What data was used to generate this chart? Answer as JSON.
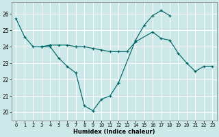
{
  "xlabel": "Humidex (Indice chaleur)",
  "bg_color": "#cce8e8",
  "grid_color": "#ffffff",
  "line_color": "#006666",
  "xlim": [
    -0.5,
    23.5
  ],
  "ylim": [
    19.5,
    26.7
  ],
  "xticks": [
    0,
    1,
    2,
    3,
    4,
    5,
    6,
    7,
    8,
    9,
    10,
    11,
    12,
    13,
    14,
    15,
    16,
    17,
    18,
    19,
    20,
    21,
    22,
    23
  ],
  "yticks": [
    20,
    21,
    22,
    23,
    24,
    25,
    26
  ],
  "series": [
    {
      "x": [
        0,
        1,
        2,
        3,
        4
      ],
      "y": [
        25.7,
        24.6,
        24.0,
        24.0,
        24.1
      ]
    },
    {
      "x": [
        3,
        4,
        5,
        6,
        7,
        8,
        9,
        10,
        11,
        12
      ],
      "y": [
        24.0,
        24.0,
        23.3,
        22.8,
        22.4,
        20.4,
        20.1,
        20.8,
        21.0,
        21.8
      ]
    },
    {
      "x": [
        12,
        14,
        15,
        16,
        17,
        18
      ],
      "y": [
        21.8,
        24.4,
        25.3,
        25.9,
        26.2,
        25.9
      ]
    },
    {
      "x": [
        4,
        5,
        6,
        7,
        8,
        9,
        10,
        11,
        12,
        13,
        14,
        16,
        17,
        18,
        19,
        20,
        21,
        22,
        23
      ],
      "y": [
        24.1,
        24.1,
        24.1,
        24.0,
        24.0,
        23.9,
        23.8,
        23.7,
        23.7,
        23.7,
        24.3,
        24.9,
        24.5,
        24.4,
        23.6,
        23.0,
        22.5,
        22.8,
        22.8
      ]
    }
  ]
}
